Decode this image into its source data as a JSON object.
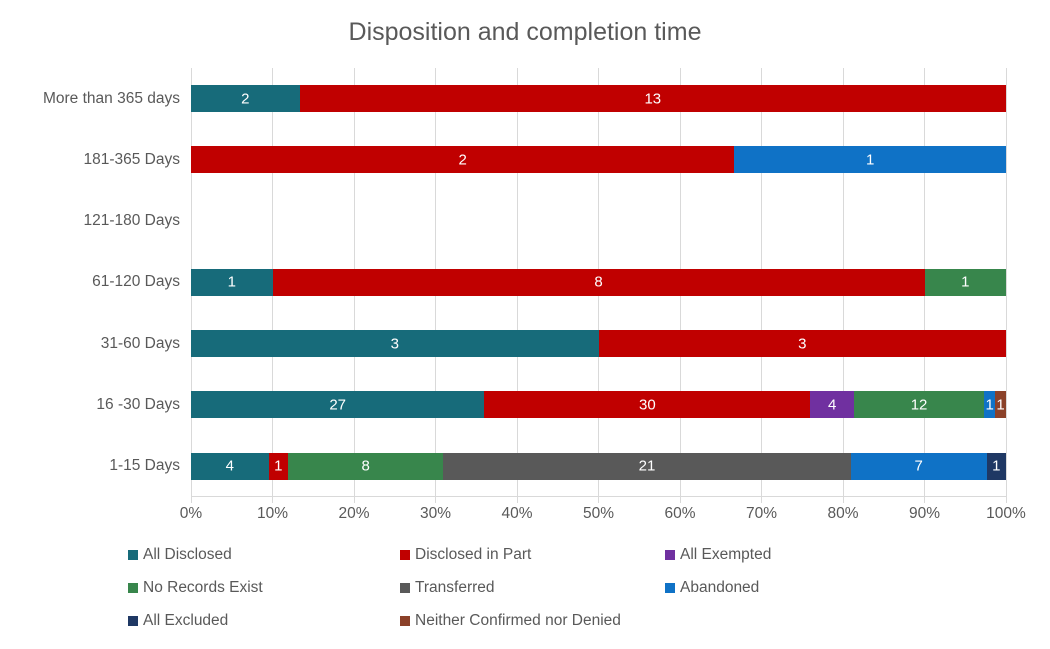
{
  "title": "Disposition and completion time",
  "chart_data": {
    "type": "bar",
    "orientation": "horizontal",
    "stacked": true,
    "normalized_to_percent": true,
    "title": "Disposition and completion time",
    "xlabel": "",
    "ylabel": "",
    "xlim": [
      0,
      100
    ],
    "grid": true,
    "x_tick_labels": [
      "0%",
      "10%",
      "20%",
      "30%",
      "40%",
      "50%",
      "60%",
      "70%",
      "80%",
      "90%",
      "100%"
    ],
    "categories_top_to_bottom": [
      "More than 365 days",
      "181-365 Days",
      "121-180 Days",
      "61-120 Days",
      "31-60 Days",
      "16 -30 Days",
      "1-15 Days"
    ],
    "series": [
      {
        "name": "All Disclosed",
        "color": "#176b7a",
        "values": [
          2,
          0,
          0,
          1,
          3,
          27,
          4
        ]
      },
      {
        "name": "Disclosed in Part",
        "color": "#c00000",
        "values": [
          13,
          2,
          0,
          8,
          3,
          30,
          1
        ]
      },
      {
        "name": "All Exempted",
        "color": "#7030a0",
        "values": [
          0,
          0,
          0,
          0,
          0,
          4,
          0
        ]
      },
      {
        "name": "No Records Exist",
        "color": "#38864c",
        "values": [
          0,
          0,
          0,
          1,
          0,
          12,
          8
        ]
      },
      {
        "name": "Transferred",
        "color": "#595959",
        "values": [
          0,
          0,
          0,
          0,
          0,
          0,
          21
        ]
      },
      {
        "name": "Abandoned",
        "color": "#0f72c6",
        "values": [
          0,
          1,
          0,
          0,
          0,
          1,
          7
        ]
      },
      {
        "name": "All Excluded",
        "color": "#1f3864",
        "values": [
          0,
          0,
          0,
          0,
          0,
          0,
          1
        ]
      },
      {
        "name": "Neither Confirmed nor Denied",
        "color": "#8b4129",
        "values": [
          0,
          0,
          0,
          0,
          0,
          1,
          0
        ]
      }
    ],
    "legend": {
      "position": "bottom",
      "columns": 3,
      "entries": [
        "All Disclosed",
        "Disclosed in Part",
        "All Exempted",
        "No Records Exist",
        "Transferred",
        "Abandoned",
        "All Excluded",
        "Neither Confirmed nor Denied"
      ]
    },
    "colors": {
      "gridline": "#d9d9d9",
      "axis_text": "#595959",
      "title_text": "#595959",
      "bar_label_text": "#ffffff"
    }
  }
}
